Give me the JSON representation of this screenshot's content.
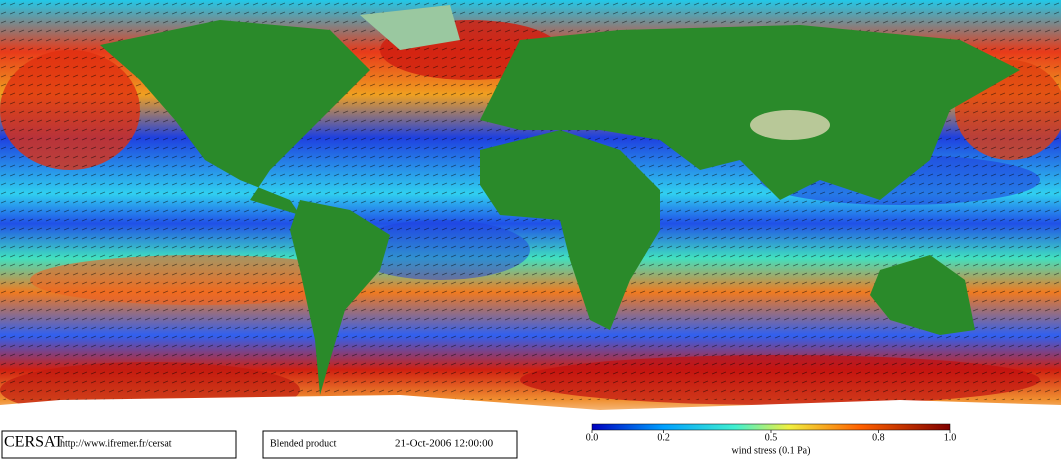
{
  "footer": {
    "logo": "CERSAT",
    "url": "http://www.ifremer.fr/cersat",
    "product": "Blended product",
    "datetime": "21-Oct-2006 12:00:00"
  },
  "colorbar": {
    "range": [
      0,
      1
    ],
    "ticks": [
      {
        "value": 0,
        "label": "0.0"
      },
      0.2,
      0.5,
      0.8,
      {
        "value": 1,
        "label": "1.0"
      }
    ],
    "label": "wind stress (0.1 Pa)"
  }
}
